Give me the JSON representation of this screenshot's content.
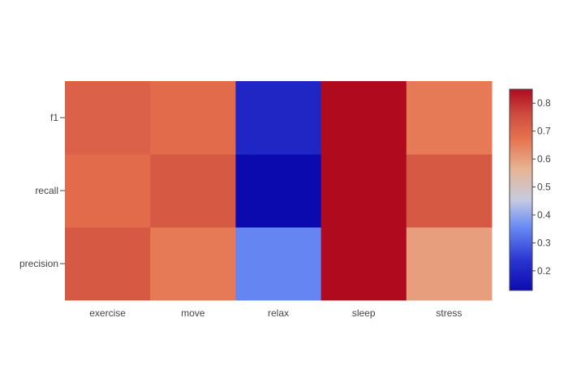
{
  "chart_data": {
    "type": "heatmap",
    "title": "",
    "xlabel": "",
    "ylabel": "",
    "x_categories": [
      "exercise",
      "move",
      "relax",
      "sleep",
      "stress"
    ],
    "y_categories": [
      "precision",
      "recall",
      "f1"
    ],
    "z": [
      [
        0.73,
        0.66,
        0.35,
        0.85,
        0.6
      ],
      [
        0.69,
        0.73,
        0.13,
        0.85,
        0.73
      ],
      [
        0.71,
        0.69,
        0.2,
        0.85,
        0.66
      ]
    ],
    "colorscale": {
      "name": "coolwarm",
      "stops": [
        [
          0.0,
          "#0b0aaf"
        ],
        [
          0.15,
          "#2a35d0"
        ],
        [
          0.32,
          "#6b8ef5"
        ],
        [
          0.45,
          "#c7cbe0"
        ],
        [
          0.6,
          "#e6b596"
        ],
        [
          0.75,
          "#e6744f"
        ],
        [
          0.88,
          "#cd4a3e"
        ],
        [
          1.0,
          "#b00a1f"
        ]
      ]
    },
    "colorbar": {
      "range": [
        0.13,
        0.85
      ],
      "ticks": [
        0.2,
        0.3,
        0.4,
        0.5,
        0.6,
        0.7,
        0.8
      ]
    }
  }
}
